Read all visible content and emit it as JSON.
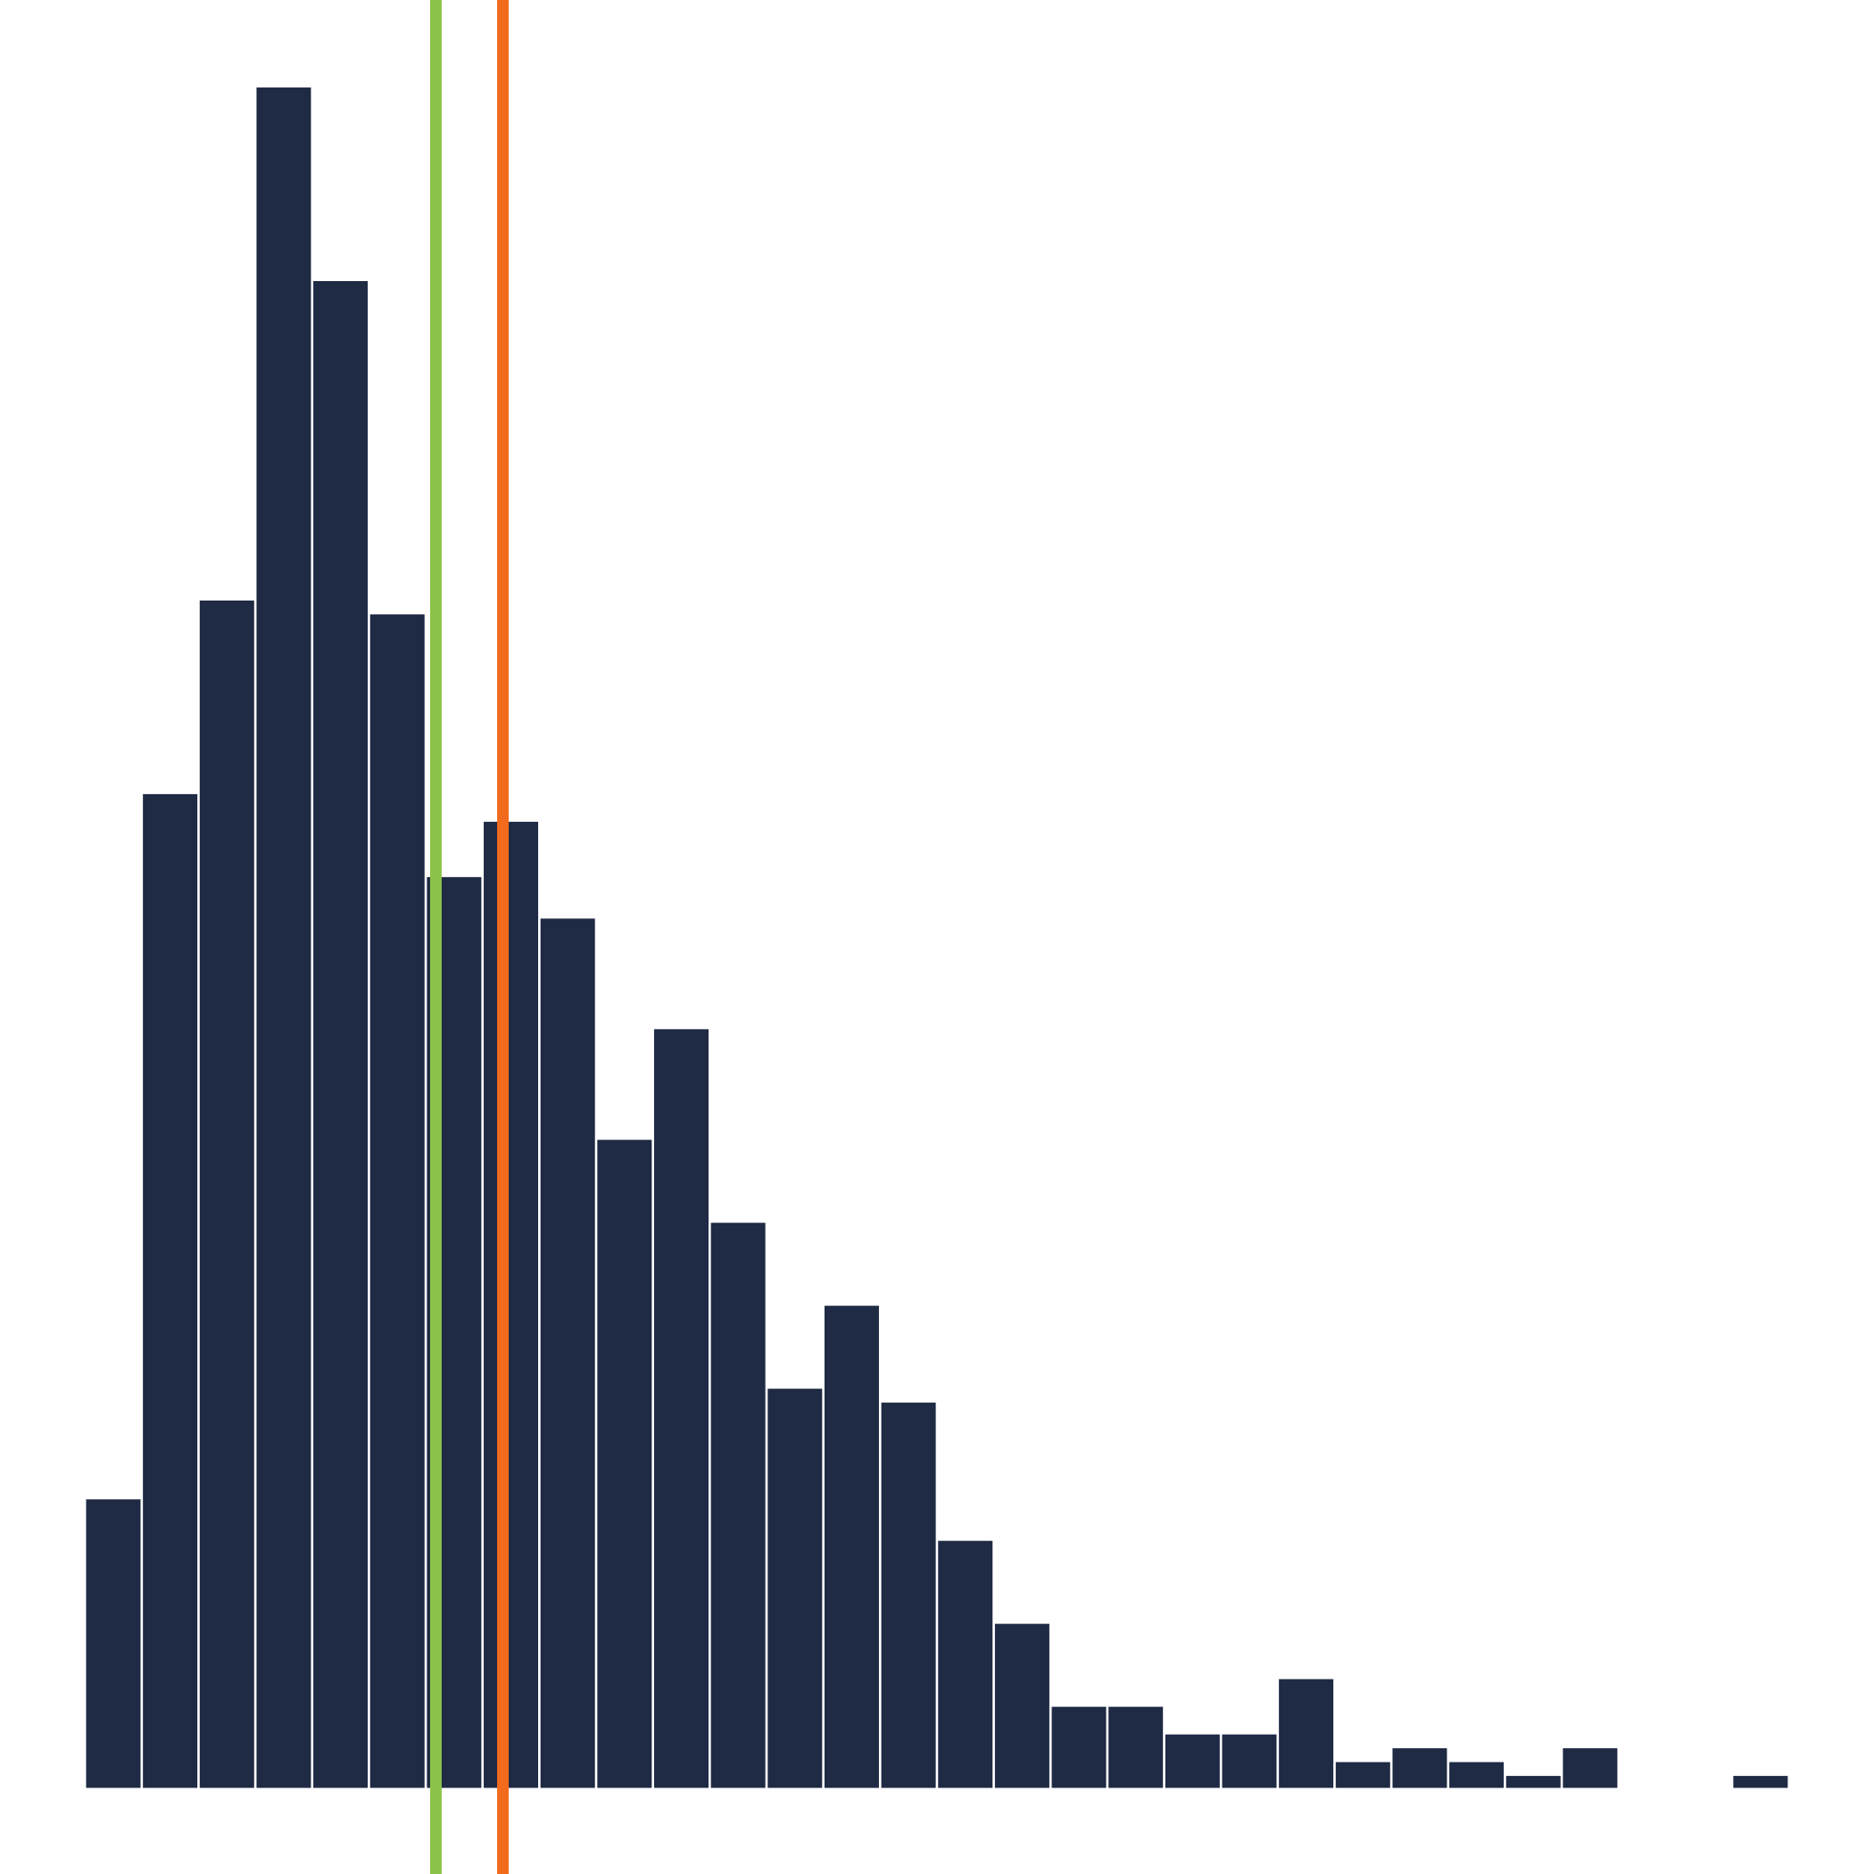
{
  "chart_data": {
    "type": "bar",
    "title": "",
    "xlabel": "",
    "ylabel": "",
    "grid": false,
    "legend": "none",
    "bar_color": "#1f2a44",
    "ylim": [
      0,
      123
    ],
    "values": [
      20.8,
      71.8,
      85.8,
      122.9,
      108.9,
      84.8,
      65.8,
      69.8,
      62.8,
      46.8,
      54.8,
      40.8,
      28.8,
      34.8,
      27.8,
      17.8,
      11.8,
      5.8,
      5.8,
      3.8,
      3.8,
      7.8,
      1.8,
      2.8,
      1.8,
      0.8,
      2.8,
      0,
      0,
      0.8
    ],
    "reference_lines": [
      {
        "position": 6.15,
        "color": "#8bc34a"
      },
      {
        "position": 7.33,
        "color": "#f26b1d"
      }
    ]
  }
}
